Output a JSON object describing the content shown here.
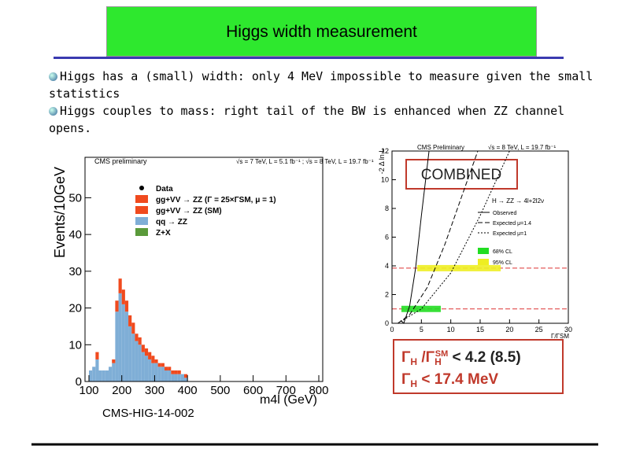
{
  "title": "Higgs width measurement",
  "bullets": [
    {
      "text": "Higgs has a (small) width: only 4 MeV impossible to measure given the small statistics"
    },
    {
      "text": "Higgs couples to mass: right tail of the BW is enhanced when ZZ channel opens."
    }
  ],
  "left_figure": {
    "type": "histogram",
    "label": "CMS preliminary",
    "energy": "√s = 7 TeV, L = 5.1 fb⁻¹ ; √s = 8 TeV, L = 19.7 fb⁻¹",
    "ylabel": "Events/10GeV",
    "xlabel": "m4l (GeV)",
    "reference": "CMS-HIG-14-002",
    "legend": [
      "Data",
      "gg+VV → ZZ (Γ = 25×ΓSM, μ = 1)",
      "gg+VV → ZZ (SM)",
      "qq → ZZ",
      "Z+X"
    ],
    "bins": [
      100,
      110,
      120,
      130,
      140,
      150,
      160,
      170,
      180,
      190,
      200,
      210,
      220,
      230,
      240,
      250,
      260,
      270,
      280,
      290,
      300,
      310,
      320,
      330,
      340,
      350,
      360,
      370,
      380,
      390,
      400
    ],
    "series": [
      {
        "name": "qq → ZZ",
        "color": "#7faed6",
        "values": [
          3,
          4,
          6,
          3,
          3,
          3,
          4,
          5,
          19,
          24,
          21,
          19,
          15,
          13,
          11,
          10,
          8,
          7,
          6,
          5,
          5,
          4,
          4,
          3,
          3,
          2,
          2,
          2,
          2,
          1
        ]
      },
      {
        "name": "gg+VV → ZZ (SM)",
        "color": "#f04a1e",
        "values": [
          0,
          0,
          2,
          0,
          0,
          0,
          0,
          1,
          3,
          4,
          4,
          3,
          3,
          3,
          2,
          2,
          2,
          2,
          2,
          2,
          1,
          1,
          1,
          1,
          1,
          1,
          1,
          1,
          0,
          1
        ]
      }
    ],
    "xlim": [
      88,
      812
    ],
    "ylim": [
      0,
      61
    ],
    "xticks": [
      100,
      200,
      300,
      400,
      500,
      600,
      700,
      800
    ],
    "yticks": [
      0,
      10,
      20,
      30,
      40,
      50
    ]
  },
  "right_figure": {
    "type": "line",
    "label": "CMS Preliminary",
    "energy": "√s = 8 TeV, L = 19.7 fb⁻¹",
    "channel": "H → ZZ → 4l+2l2ν",
    "ylabel": "-2 Δ ln L",
    "xlabel": "Γ/ΓSM",
    "series": [
      {
        "name": "Observed",
        "color": "#000000",
        "style": "solid",
        "x": [
          1.5,
          2,
          3,
          4,
          5,
          6.3
        ],
        "values": [
          0.2,
          0,
          1.2,
          3.8,
          7.5,
          12
        ]
      },
      {
        "name": "Expected μ=1.4",
        "color": "#000000",
        "style": "dashed",
        "x": [
          1,
          3,
          6,
          9,
          12,
          14.6
        ],
        "values": [
          0,
          0.6,
          2.5,
          5.5,
          9,
          12
        ]
      },
      {
        "name": "Expected μ=1",
        "color": "#000000",
        "style": "dotted",
        "x": [
          1,
          5,
          10,
          15,
          20
        ],
        "values": [
          0,
          1,
          3.5,
          7.5,
          12
        ]
      }
    ],
    "bands": [
      {
        "name": "68% CL",
        "color": "#22dd22",
        "level": 1,
        "interval": [
          1.6,
          8.3
        ]
      },
      {
        "name": "95% CL",
        "color": "#eeee22",
        "level": 3.84,
        "interval": [
          4.3,
          18.5
        ]
      }
    ],
    "xlim": [
      0,
      30
    ],
    "ylim": [
      0,
      12
    ],
    "xticks": [
      0,
      5,
      10,
      15,
      20,
      25,
      30
    ],
    "yticks": [
      0,
      2,
      4,
      6,
      8,
      10,
      12
    ]
  },
  "combined_label": "COMBINED",
  "result": {
    "line1": [
      "Γ",
      "H",
      " /Γ",
      "H",
      "SM",
      "  < 4.2 (8.5)"
    ],
    "line2": [
      "Γ",
      "H",
      " < 17.4 MeV"
    ]
  }
}
